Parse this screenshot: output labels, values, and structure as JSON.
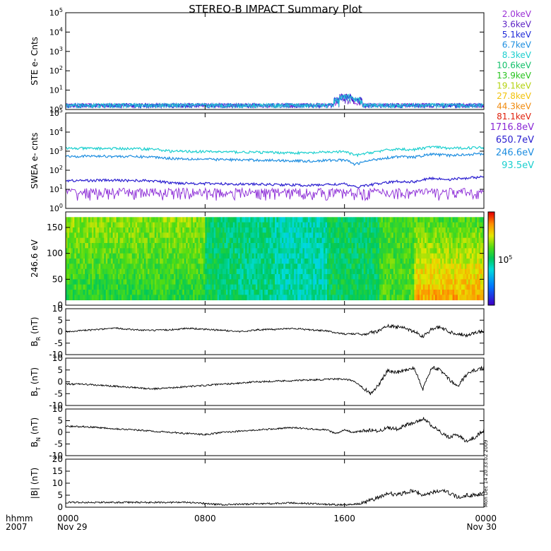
{
  "title": "STEREO-B IMPACT Summary Plot",
  "timestamp_note": "Mon Dec 14 20:33:02 2009",
  "x_axis": {
    "row_label_1": "hhmm",
    "row_label_2": "2007",
    "ticks": [
      {
        "t": 0,
        "time": "0000",
        "date": "Nov 29"
      },
      {
        "t": 8,
        "time": "0800",
        "date": ""
      },
      {
        "t": 16,
        "time": "1600",
        "date": ""
      },
      {
        "t": 24,
        "time": "0000",
        "date": "Nov 30"
      }
    ],
    "range_hours": [
      0,
      24
    ]
  },
  "chart_data": [
    {
      "type": "line",
      "ylabel": "STE e- Cnts",
      "scale": "log",
      "ylim_exp": [
        0,
        5
      ],
      "tick_labels": [
        "10",
        "10",
        "10",
        "10",
        "10",
        "10"
      ],
      "tick_exponents": [
        "0",
        "1",
        "2",
        "3",
        "4",
        "5"
      ],
      "legend": [
        {
          "label": "2.0keV",
          "color": "#9b30d6"
        },
        {
          "label": "3.6keV",
          "color": "#5a1fc4"
        },
        {
          "label": "5.1keV",
          "color": "#1f2ad8"
        },
        {
          "label": "6.7keV",
          "color": "#1e8fe0"
        },
        {
          "label": "8.3keV",
          "color": "#1ccfcf"
        },
        {
          "label": "10.6keV",
          "color": "#12c06a"
        },
        {
          "label": "13.9keV",
          "color": "#27c41e"
        },
        {
          "label": "19.1keV",
          "color": "#b5d312"
        },
        {
          "label": "27.8keV",
          "color": "#f2c30c"
        },
        {
          "label": "44.3keV",
          "color": "#f08a0c"
        },
        {
          "label": "81.1keV",
          "color": "#e0200c"
        }
      ],
      "baseline_counts": 1.2,
      "burst_hours": [
        15.8,
        16.1,
        16.6
      ]
    },
    {
      "type": "line",
      "ylabel": "SWEA e- cnts",
      "scale": "log",
      "ylim_exp": [
        0,
        5
      ],
      "tick_labels": [
        "10",
        "10",
        "10",
        "10",
        "10",
        "10"
      ],
      "tick_exponents": [
        "0",
        "1",
        "2",
        "3",
        "4",
        "5"
      ],
      "legend": [
        {
          "label": "1716.8eV",
          "color": "#8a28d6"
        },
        {
          "label": "650.7eV",
          "color": "#2a1ed0"
        },
        {
          "label": "246.6eV",
          "color": "#1e8ee0"
        },
        {
          "label": "93.5eV",
          "color": "#1ccfcf"
        }
      ],
      "series": [
        {
          "name": "93.5eV",
          "color": "#1ccfcf",
          "x": [
            0,
            2,
            4,
            5,
            6,
            8,
            10,
            12,
            14,
            15,
            16,
            16.6,
            17,
            18,
            19,
            20,
            21,
            22,
            24
          ],
          "y": [
            1400,
            1400,
            1350,
            1300,
            1000,
            950,
            900,
            850,
            800,
            900,
            950,
            600,
            700,
            1000,
            1300,
            1200,
            1700,
            1400,
            1600
          ]
        },
        {
          "name": "246.6eV",
          "color": "#1e8ee0",
          "x": [
            0,
            2,
            4,
            5,
            6,
            8,
            10,
            12,
            14,
            15,
            16,
            16.6,
            17,
            18,
            19,
            20,
            21,
            22,
            24
          ],
          "y": [
            550,
            550,
            520,
            500,
            420,
            380,
            350,
            330,
            300,
            330,
            350,
            200,
            260,
            400,
            520,
            480,
            700,
            600,
            750
          ]
        },
        {
          "name": "650.7eV",
          "color": "#2a1ed0",
          "x": [
            0,
            2,
            4,
            5,
            6,
            8,
            10,
            12,
            14,
            15,
            16,
            16.6,
            17,
            18,
            19,
            20,
            21,
            22,
            24
          ],
          "y": [
            28,
            30,
            29,
            28,
            22,
            20,
            19,
            18,
            16,
            18,
            19,
            13,
            15,
            20,
            26,
            25,
            38,
            33,
            45
          ]
        },
        {
          "name": "1716.8eV",
          "color": "#8a28d6",
          "x": [
            0,
            24
          ],
          "y": [
            5,
            5
          ]
        }
      ]
    },
    {
      "type": "heatmap",
      "ylabel": "246.6 eV",
      "ylim": [
        0,
        180
      ],
      "tick_values": [
        "0",
        "50",
        "100",
        "150"
      ],
      "colorbar_label": "10",
      "colorbar_exp": "5",
      "bins_y": [
        10,
        170
      ]
    },
    {
      "type": "line",
      "ylabel": "B",
      "ylabel_sub": "R",
      "ylabel_unit": " (nT)",
      "ylim": [
        -10,
        10
      ],
      "tick_values": [
        "10",
        "5",
        "0",
        "-5",
        "-10"
      ],
      "x": [
        0,
        1,
        2,
        3,
        4,
        5,
        6,
        7,
        8,
        9,
        10,
        11,
        12,
        13,
        14,
        15,
        15.5,
        16,
        16.5,
        17,
        17.5,
        18,
        18.5,
        19,
        19.5,
        20,
        20.5,
        21,
        21.5,
        22,
        22.5,
        23,
        23.5,
        24
      ],
      "y": [
        0,
        0.5,
        1,
        1.5,
        0.8,
        0.5,
        0.8,
        1.5,
        1,
        0.6,
        0,
        0.8,
        1,
        1.5,
        0.8,
        0.3,
        -0.5,
        -1,
        -1,
        -1,
        -0.5,
        0.5,
        2.5,
        2,
        1.5,
        0,
        -2,
        1,
        2,
        0,
        -1,
        -1.5,
        -0.5,
        0.5
      ]
    },
    {
      "type": "line",
      "ylabel": "B",
      "ylabel_sub": "T",
      "ylabel_unit": " (nT)",
      "ylim": [
        -10,
        10
      ],
      "tick_values": [
        "10",
        "5",
        "0",
        "-5",
        "-10"
      ],
      "x": [
        0,
        1,
        2,
        3,
        4,
        5,
        6,
        7,
        8,
        9,
        10,
        11,
        12,
        13,
        14,
        15,
        15.5,
        16,
        16.5,
        17,
        17.5,
        18,
        18.5,
        19,
        19.5,
        20,
        20.5,
        21,
        21.5,
        22,
        22.5,
        23,
        23.5,
        24
      ],
      "y": [
        -1,
        -1,
        -1.5,
        -2,
        -2.5,
        -3,
        -2.5,
        -2,
        -1.5,
        -1,
        -0.5,
        0,
        0.3,
        0.5,
        0.8,
        1,
        1.2,
        1,
        0.5,
        -2,
        -5,
        -1,
        5,
        4,
        5,
        6,
        -3,
        6,
        5,
        1,
        -2,
        3,
        5,
        6
      ]
    },
    {
      "type": "line",
      "ylabel": "B",
      "ylabel_sub": "N",
      "ylabel_unit": " (nT)",
      "ylim": [
        -10,
        10
      ],
      "tick_values": [
        "10",
        "5",
        "0",
        "-5",
        "-10"
      ],
      "x": [
        0,
        1,
        2,
        3,
        4,
        5,
        6,
        7,
        8,
        9,
        10,
        11,
        12,
        13,
        14,
        15,
        15.5,
        16,
        16.5,
        17,
        17.5,
        18,
        18.5,
        19,
        19.5,
        20,
        20.5,
        21,
        21.5,
        22,
        22.5,
        23,
        23.5,
        24
      ],
      "y": [
        2.5,
        2.5,
        2,
        1.5,
        1,
        0.5,
        0,
        -0.5,
        -1,
        0,
        0.5,
        1,
        1.5,
        2,
        1.5,
        1,
        -0.5,
        1,
        0,
        0.5,
        1,
        0.5,
        2,
        1.5,
        3,
        4,
        6,
        3,
        0,
        -2,
        -1,
        -4,
        -2,
        1
      ]
    },
    {
      "type": "line",
      "ylabel": "|B| (nT)",
      "ylim": [
        0,
        20
      ],
      "tick_values": [
        "20",
        "15",
        "10",
        "5",
        "0"
      ],
      "x": [
        0,
        1,
        2,
        3,
        4,
        5,
        6,
        7,
        8,
        9,
        10,
        11,
        12,
        13,
        14,
        15,
        15.5,
        16,
        16.5,
        17,
        17.5,
        18,
        18.5,
        19,
        19.5,
        20,
        20.5,
        21,
        21.5,
        22,
        22.5,
        23,
        23.5,
        24
      ],
      "y": [
        2,
        2,
        2,
        2,
        2,
        2,
        2,
        2,
        1.5,
        1,
        1.2,
        1.5,
        1.5,
        1.8,
        1.5,
        1.2,
        1,
        1,
        1.2,
        1.5,
        3,
        4,
        6,
        5,
        6,
        7,
        5,
        6,
        7,
        6,
        4,
        5,
        5,
        6
      ]
    }
  ]
}
